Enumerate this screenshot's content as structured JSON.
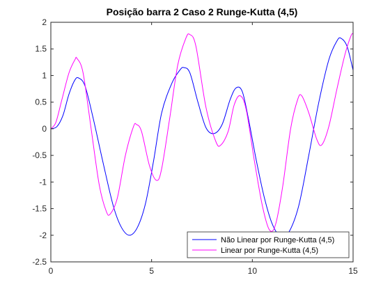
{
  "chart_data": {
    "type": "line",
    "title": "Posição barra 2 Caso 2 Runge-Kutta (4,5)",
    "xlabel": "",
    "ylabel": "",
    "xlim": [
      0,
      15
    ],
    "ylim": [
      -2.5,
      2
    ],
    "x_ticks": [
      0,
      5,
      10,
      15
    ],
    "x_tick_labels": [
      "0",
      "5",
      "10",
      "15"
    ],
    "y_ticks": [
      2,
      1.5,
      1,
      0.5,
      0,
      -0.5,
      -1,
      -1.5,
      -2,
      -2.5
    ],
    "y_tick_labels": [
      "2",
      "1.5",
      "1",
      "0.5",
      "0",
      "-0.5",
      "-1",
      "-1.5",
      "-2",
      "-2.5"
    ],
    "grid": false,
    "legend_position": "bottom-right",
    "series": [
      {
        "name": "Não Linear por Runge-Kutta (4,5)",
        "color": "#0000ff",
        "points": [
          [
            0,
            0
          ],
          [
            0.3,
            0.04
          ],
          [
            0.6,
            0.25
          ],
          [
            0.9,
            0.65
          ],
          [
            1.2,
            0.92
          ],
          [
            1.4,
            0.95
          ],
          [
            1.7,
            0.8
          ],
          [
            2.1,
            0.2
          ],
          [
            2.6,
            -0.65
          ],
          [
            3.1,
            -1.45
          ],
          [
            3.5,
            -1.85
          ],
          [
            3.9,
            -2.0
          ],
          [
            4.3,
            -1.85
          ],
          [
            4.7,
            -1.4
          ],
          [
            5.1,
            -0.6
          ],
          [
            5.5,
            0.3
          ],
          [
            6.0,
            0.85
          ],
          [
            6.4,
            1.1
          ],
          [
            6.6,
            1.15
          ],
          [
            6.9,
            1.05
          ],
          [
            7.3,
            0.5
          ],
          [
            7.7,
            0.02
          ],
          [
            8.1,
            -0.09
          ],
          [
            8.5,
            0.08
          ],
          [
            8.9,
            0.55
          ],
          [
            9.2,
            0.77
          ],
          [
            9.5,
            0.7
          ],
          [
            9.8,
            0.2
          ],
          [
            10.2,
            -0.6
          ],
          [
            10.6,
            -1.3
          ],
          [
            11.0,
            -1.8
          ],
          [
            11.4,
            -2.02
          ],
          [
            11.8,
            -1.95
          ],
          [
            12.3,
            -1.45
          ],
          [
            12.8,
            -0.5
          ],
          [
            13.3,
            0.5
          ],
          [
            13.8,
            1.3
          ],
          [
            14.2,
            1.65
          ],
          [
            14.4,
            1.7
          ],
          [
            14.7,
            1.55
          ],
          [
            15.0,
            1.1
          ]
        ]
      },
      {
        "name": "Linear por Runge-Kutta (4,5)",
        "color": "#ff00ff",
        "points": [
          [
            0,
            0
          ],
          [
            0.25,
            0.12
          ],
          [
            0.55,
            0.55
          ],
          [
            0.9,
            1.05
          ],
          [
            1.2,
            1.3
          ],
          [
            1.3,
            1.32
          ],
          [
            1.6,
            1.05
          ],
          [
            2.0,
            0.0
          ],
          [
            2.4,
            -1.05
          ],
          [
            2.75,
            -1.55
          ],
          [
            2.95,
            -1.6
          ],
          [
            3.3,
            -1.3
          ],
          [
            3.7,
            -0.5
          ],
          [
            4.1,
            0.04
          ],
          [
            4.25,
            0.08
          ],
          [
            4.5,
            -0.05
          ],
          [
            4.9,
            -0.7
          ],
          [
            5.25,
            -0.97
          ],
          [
            5.5,
            -0.75
          ],
          [
            5.9,
            0.2
          ],
          [
            6.3,
            1.2
          ],
          [
            6.7,
            1.7
          ],
          [
            6.9,
            1.77
          ],
          [
            7.2,
            1.55
          ],
          [
            7.7,
            0.4
          ],
          [
            8.2,
            -0.25
          ],
          [
            8.45,
            -0.3
          ],
          [
            8.8,
            -0.05
          ],
          [
            9.1,
            0.45
          ],
          [
            9.4,
            0.62
          ],
          [
            9.7,
            0.35
          ],
          [
            10.1,
            -0.6
          ],
          [
            10.5,
            -1.45
          ],
          [
            10.85,
            -1.9
          ],
          [
            11.15,
            -1.8
          ],
          [
            11.5,
            -1.1
          ],
          [
            11.9,
            0.0
          ],
          [
            12.25,
            0.55
          ],
          [
            12.45,
            0.62
          ],
          [
            12.8,
            0.3
          ],
          [
            13.2,
            -0.2
          ],
          [
            13.45,
            -0.3
          ],
          [
            13.8,
            0.05
          ],
          [
            14.2,
            0.75
          ],
          [
            14.6,
            1.4
          ],
          [
            14.9,
            1.75
          ],
          [
            15.0,
            1.78
          ]
        ]
      }
    ]
  }
}
